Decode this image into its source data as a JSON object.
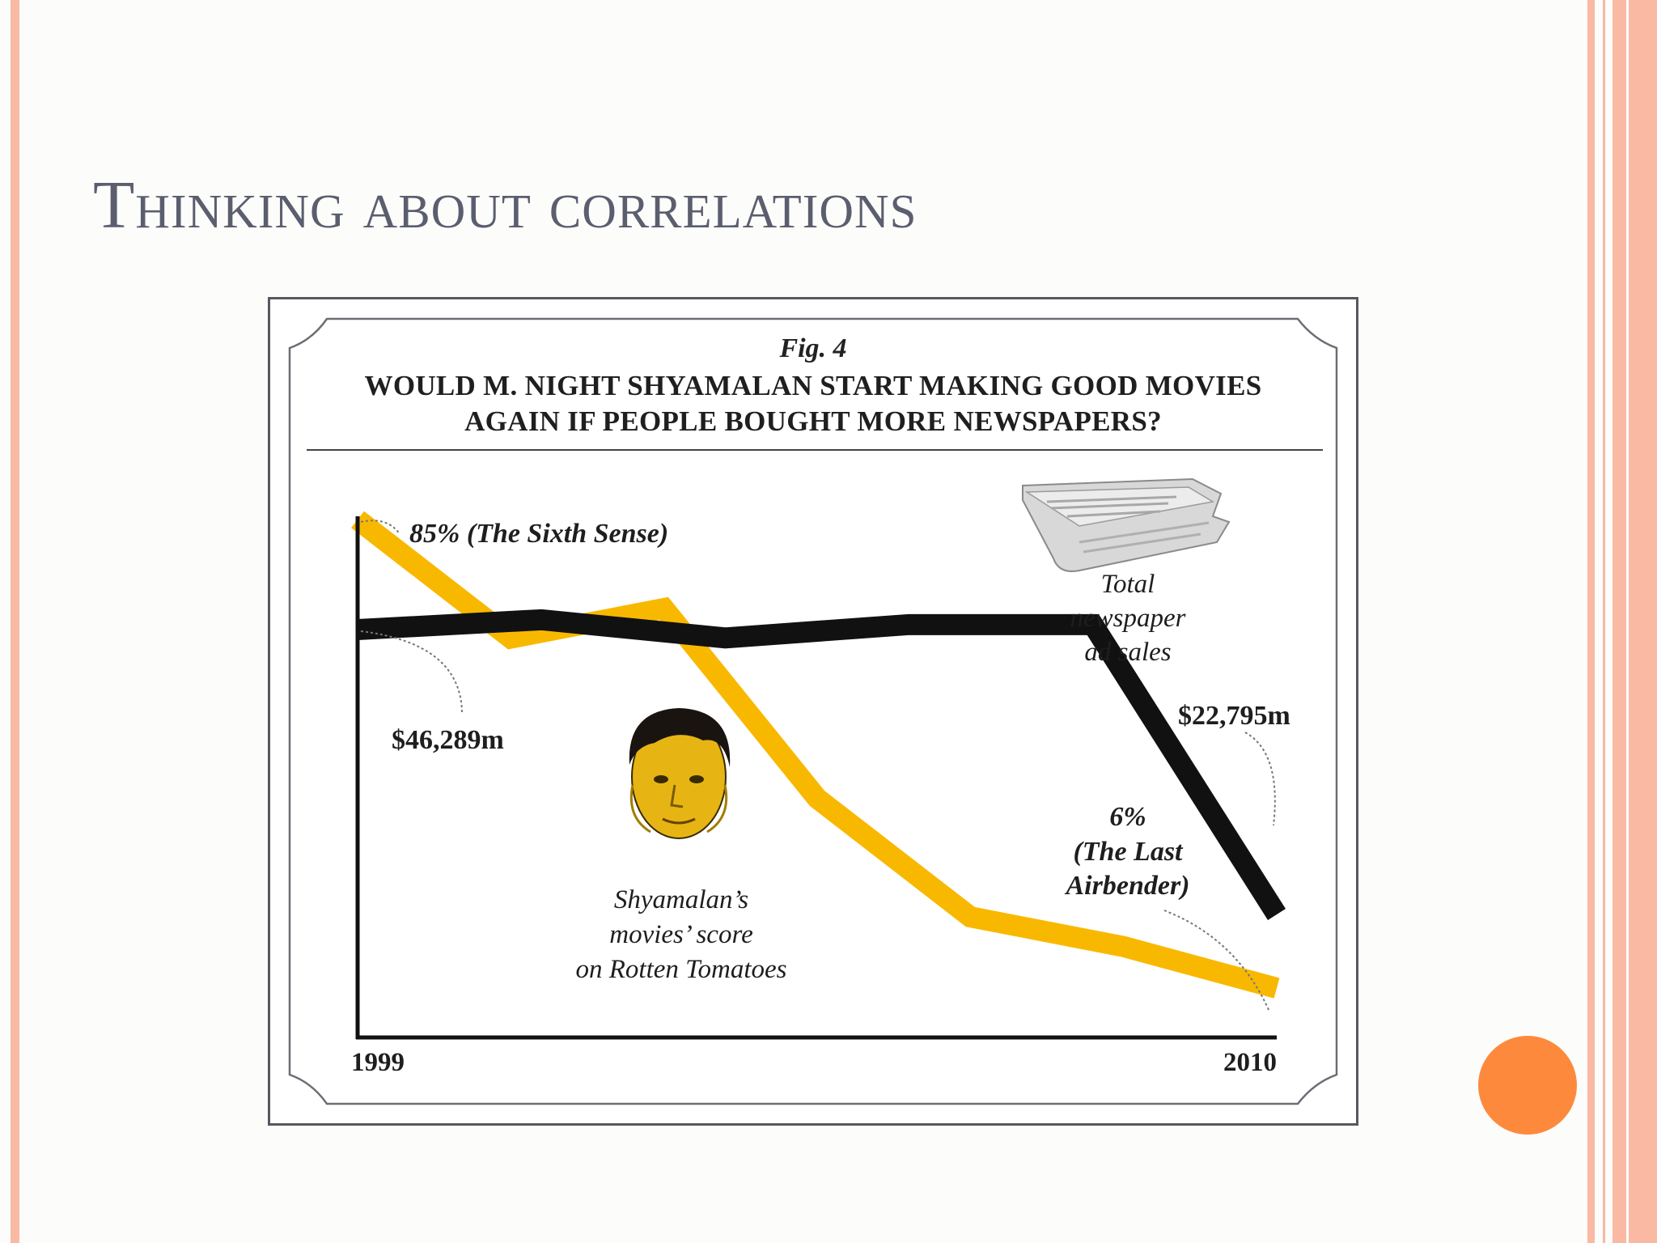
{
  "slide": {
    "title": "Thinking about correlations",
    "colors": {
      "accent_bar": "#f9b9a2",
      "accent_dot": "#fd8a3c",
      "title": "#5a5e6e"
    }
  },
  "chart_data": {
    "type": "line",
    "fig_label": "Fig. 4",
    "title": "WOULD M. NIGHT SHYAMALAN START MAKING GOOD MOVIES AGAIN IF PEOPLE BOUGHT MORE NEWSPAPERS?",
    "title_lines": [
      "WOULD M. NIGHT SHYAMALAN START MAKING GOOD MOVIES",
      "AGAIN IF PEOPLE BOUGHT MORE NEWSPAPERS?"
    ],
    "x_tick_labels": [
      "1999",
      "2010"
    ],
    "grid": false,
    "series": [
      {
        "name": "Shyamalan's movies' score on Rotten Tomatoes",
        "label_lines": [
          "Shyamalan’s",
          "movies’ score",
          "on Rotten Tomatoes"
        ],
        "color": "#f9b800",
        "values": [
          85,
          65,
          70,
          38,
          18,
          13,
          6
        ],
        "start_label": "85% (The Sixth Sense)",
        "end_label_lines": [
          "6%",
          "(The Last",
          "Airbender)"
        ]
      },
      {
        "name": "Total newspaper ad sales",
        "label_lines": [
          "Total",
          "newspaper",
          "ad sales"
        ],
        "color": "#111111",
        "values": [
          46289,
          47100,
          45600,
          46700,
          46700,
          22795
        ],
        "start_label": "$46,289m",
        "end_label": "$22,795m"
      }
    ]
  }
}
